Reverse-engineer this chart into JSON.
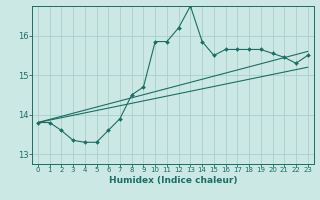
{
  "title": "",
  "xlabel": "Humidex (Indice chaleur)",
  "ylabel": "",
  "background_color": "#cce8e4",
  "line_color": "#1a6e64",
  "grid_color": "#aacfcb",
  "xlim": [
    -0.5,
    23.5
  ],
  "ylim": [
    12.75,
    16.75
  ],
  "xticks": [
    0,
    1,
    2,
    3,
    4,
    5,
    6,
    7,
    8,
    9,
    10,
    11,
    12,
    13,
    14,
    15,
    16,
    17,
    18,
    19,
    20,
    21,
    22,
    23
  ],
  "yticks": [
    13,
    14,
    15,
    16
  ],
  "curve1_x": [
    0,
    1,
    2,
    3,
    4,
    5,
    6,
    7,
    8,
    9,
    10,
    11,
    12,
    13,
    14,
    15,
    16,
    17,
    18,
    19,
    20,
    21,
    22,
    23
  ],
  "curve1_y": [
    13.8,
    13.8,
    13.6,
    13.35,
    13.3,
    13.3,
    13.6,
    13.9,
    14.5,
    14.7,
    15.85,
    15.85,
    16.2,
    16.75,
    15.85,
    15.5,
    15.65,
    15.65,
    15.65,
    15.65,
    15.55,
    15.45,
    15.3,
    15.5
  ],
  "line2_x": [
    0,
    23
  ],
  "line2_y": [
    13.8,
    15.6
  ],
  "line3_x": [
    0,
    23
  ],
  "line3_y": [
    13.8,
    15.2
  ],
  "xlabel_fontsize": 6.5,
  "xlabel_fontweight": "bold",
  "tick_labelsize": 5.0
}
